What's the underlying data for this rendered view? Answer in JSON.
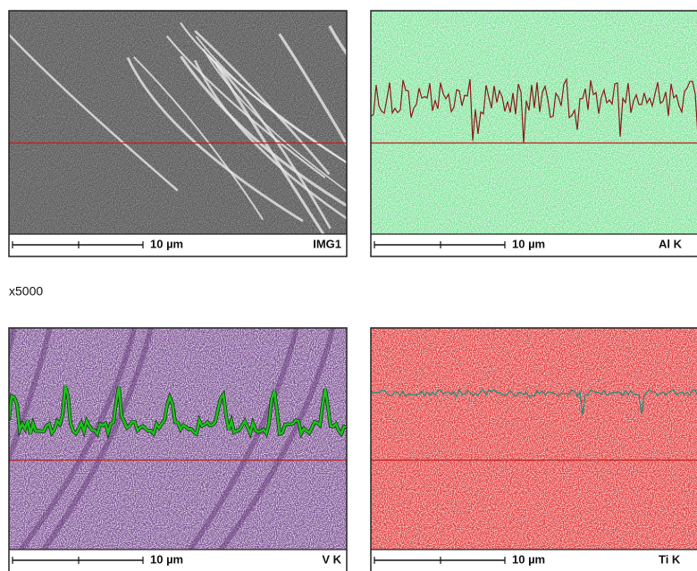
{
  "panels": [
    {
      "scale_label": "10 µm",
      "label": "IMG1"
    },
    {
      "scale_label": "10 µm",
      "label": "Al K"
    },
    {
      "scale_label": "10 µm",
      "label": "V K"
    },
    {
      "scale_label": "10 µm",
      "label": "Ti K"
    }
  ],
  "magnification": "x5000"
}
